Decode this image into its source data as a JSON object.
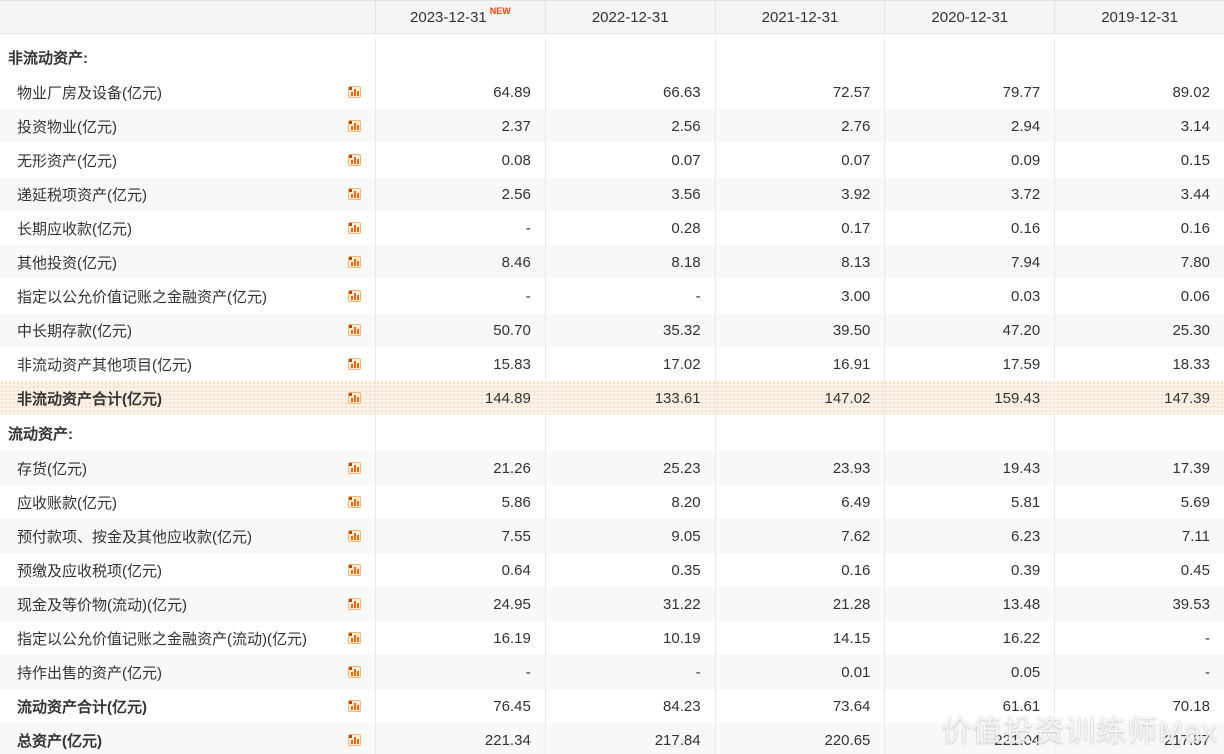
{
  "header": {
    "label_column": "",
    "columns": [
      {
        "label": "2023-12-31",
        "badge": "NEW"
      },
      {
        "label": "2022-12-31",
        "badge": ""
      },
      {
        "label": "2021-12-31",
        "badge": ""
      },
      {
        "label": "2020-12-31",
        "badge": ""
      },
      {
        "label": "2019-12-31",
        "badge": ""
      }
    ]
  },
  "colors": {
    "header_bg": "#f5f5f5",
    "stripe_bg": "#f8f8f8",
    "highlight_bg": "#fdf2e8",
    "divider": "#eaeaea",
    "badge": "#ff4400",
    "icon_orange": "#f46908",
    "text": "#333333"
  },
  "icon_name": "bar-chart-icon",
  "watermark": "价值投资训练师Max",
  "rows": [
    {
      "type": "section",
      "label": "非流动资产:"
    },
    {
      "type": "data",
      "label": "物业厂房及设备(亿元)",
      "values": [
        "64.89",
        "66.63",
        "72.57",
        "79.77",
        "89.02"
      ],
      "shaded": false,
      "bold": false,
      "highlight": false
    },
    {
      "type": "data",
      "label": "投资物业(亿元)",
      "values": [
        "2.37",
        "2.56",
        "2.76",
        "2.94",
        "3.14"
      ],
      "shaded": true,
      "bold": false,
      "highlight": false
    },
    {
      "type": "data",
      "label": "无形资产(亿元)",
      "values": [
        "0.08",
        "0.07",
        "0.07",
        "0.09",
        "0.15"
      ],
      "shaded": false,
      "bold": false,
      "highlight": false
    },
    {
      "type": "data",
      "label": "递延税项资产(亿元)",
      "values": [
        "2.56",
        "3.56",
        "3.92",
        "3.72",
        "3.44"
      ],
      "shaded": true,
      "bold": false,
      "highlight": false
    },
    {
      "type": "data",
      "label": "长期应收款(亿元)",
      "values": [
        "-",
        "0.28",
        "0.17",
        "0.16",
        "0.16"
      ],
      "shaded": false,
      "bold": false,
      "highlight": false
    },
    {
      "type": "data",
      "label": "其他投资(亿元)",
      "values": [
        "8.46",
        "8.18",
        "8.13",
        "7.94",
        "7.80"
      ],
      "shaded": true,
      "bold": false,
      "highlight": false
    },
    {
      "type": "data",
      "label": "指定以公允价值记账之金融资产(亿元)",
      "values": [
        "-",
        "-",
        "3.00",
        "0.03",
        "0.06"
      ],
      "shaded": false,
      "bold": false,
      "highlight": false
    },
    {
      "type": "data",
      "label": "中长期存款(亿元)",
      "values": [
        "50.70",
        "35.32",
        "39.50",
        "47.20",
        "25.30"
      ],
      "shaded": true,
      "bold": false,
      "highlight": false
    },
    {
      "type": "data",
      "label": "非流动资产其他项目(亿元)",
      "values": [
        "15.83",
        "17.02",
        "16.91",
        "17.59",
        "18.33"
      ],
      "shaded": false,
      "bold": false,
      "highlight": false
    },
    {
      "type": "data",
      "label": "非流动资产合计(亿元)",
      "values": [
        "144.89",
        "133.61",
        "147.02",
        "159.43",
        "147.39"
      ],
      "shaded": false,
      "bold": true,
      "highlight": true
    },
    {
      "type": "section",
      "label": "流动资产:"
    },
    {
      "type": "data",
      "label": "存货(亿元)",
      "values": [
        "21.26",
        "25.23",
        "23.93",
        "19.43",
        "17.39"
      ],
      "shaded": true,
      "bold": false,
      "highlight": false
    },
    {
      "type": "data",
      "label": "应收账款(亿元)",
      "values": [
        "5.86",
        "8.20",
        "6.49",
        "5.81",
        "5.69"
      ],
      "shaded": false,
      "bold": false,
      "highlight": false
    },
    {
      "type": "data",
      "label": "预付款项、按金及其他应收款(亿元)",
      "values": [
        "7.55",
        "9.05",
        "7.62",
        "6.23",
        "7.11"
      ],
      "shaded": true,
      "bold": false,
      "highlight": false
    },
    {
      "type": "data",
      "label": "预缴及应收税项(亿元)",
      "values": [
        "0.64",
        "0.35",
        "0.16",
        "0.39",
        "0.45"
      ],
      "shaded": false,
      "bold": false,
      "highlight": false
    },
    {
      "type": "data",
      "label": "现金及等价物(流动)(亿元)",
      "values": [
        "24.95",
        "31.22",
        "21.28",
        "13.48",
        "39.53"
      ],
      "shaded": true,
      "bold": false,
      "highlight": false
    },
    {
      "type": "data",
      "label": "指定以公允价值记账之金融资产(流动)(亿元)",
      "values": [
        "16.19",
        "10.19",
        "14.15",
        "16.22",
        "-"
      ],
      "shaded": false,
      "bold": false,
      "highlight": false
    },
    {
      "type": "data",
      "label": "持作出售的资产(亿元)",
      "values": [
        "-",
        "-",
        "0.01",
        "0.05",
        "-"
      ],
      "shaded": true,
      "bold": false,
      "highlight": false
    },
    {
      "type": "data",
      "label": "流动资产合计(亿元)",
      "values": [
        "76.45",
        "84.23",
        "73.64",
        "61.61",
        "70.18"
      ],
      "shaded": false,
      "bold": true,
      "highlight": false
    },
    {
      "type": "data",
      "label": "总资产(亿元)",
      "values": [
        "221.34",
        "217.84",
        "220.65",
        "221.04",
        "217.57"
      ],
      "shaded": true,
      "bold": true,
      "highlight": false
    }
  ]
}
